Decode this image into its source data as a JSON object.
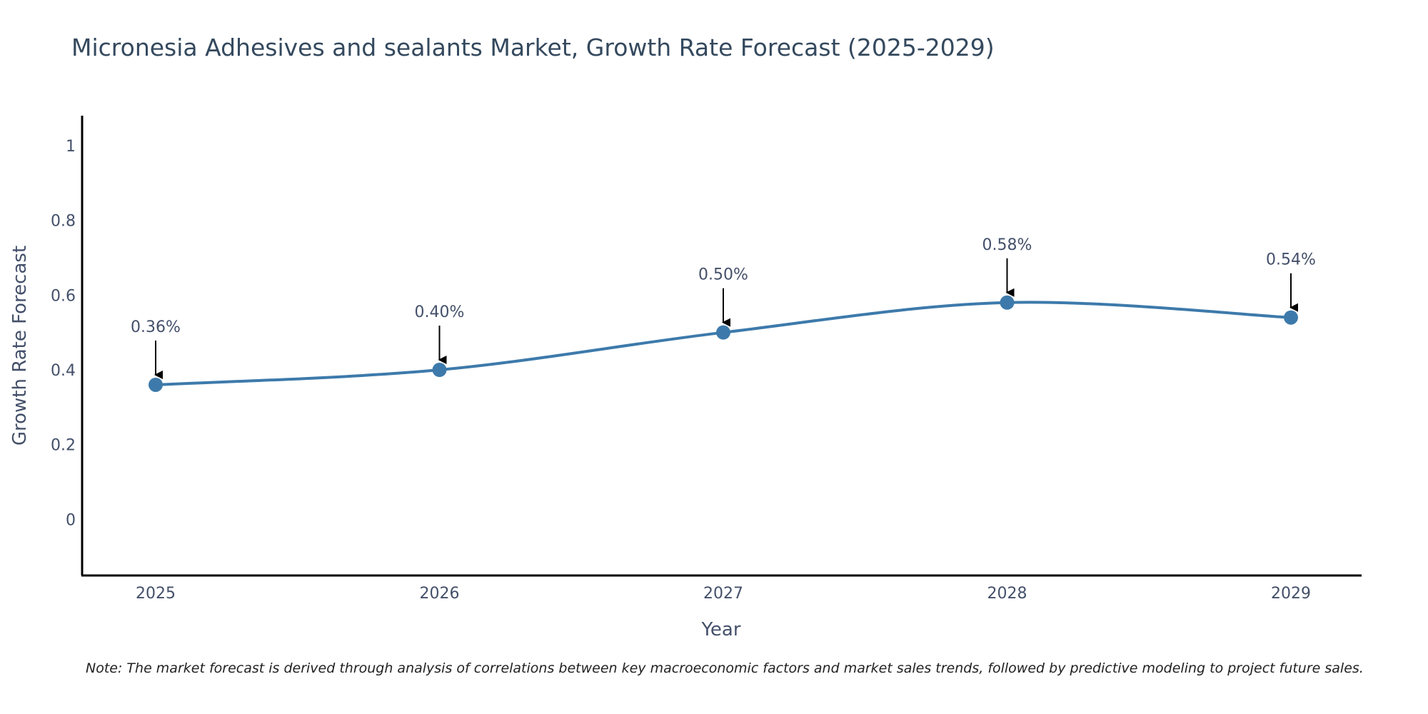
{
  "chart_data": {
    "type": "line",
    "title": "Micronesia Adhesives and sealants Market, Growth Rate Forecast (2025-2029)",
    "xlabel": "Year",
    "ylabel": "Growth Rate Forecast",
    "categories": [
      "2025",
      "2026",
      "2027",
      "2028",
      "2029"
    ],
    "series": [
      {
        "name": "Growth Rate Forecast",
        "values": [
          0.36,
          0.4,
          0.5,
          0.58,
          0.54
        ],
        "labels": [
          "0.36%",
          "0.40%",
          "0.50%",
          "0.58%",
          "0.54%"
        ],
        "color": "#3d7aab"
      }
    ],
    "ylim": [
      -0.15,
      1.08
    ],
    "yticks": [
      0,
      0.2,
      0.4,
      0.6,
      0.8,
      1
    ],
    "ytick_labels": [
      "0",
      "0.2",
      "0.4",
      "0.6",
      "0.8",
      "1"
    ],
    "grid": false,
    "note": "Note: The market forecast is derived through analysis of correlations between key macroeconomic factors and market sales trends, followed by predictive modeling to project future sales."
  }
}
